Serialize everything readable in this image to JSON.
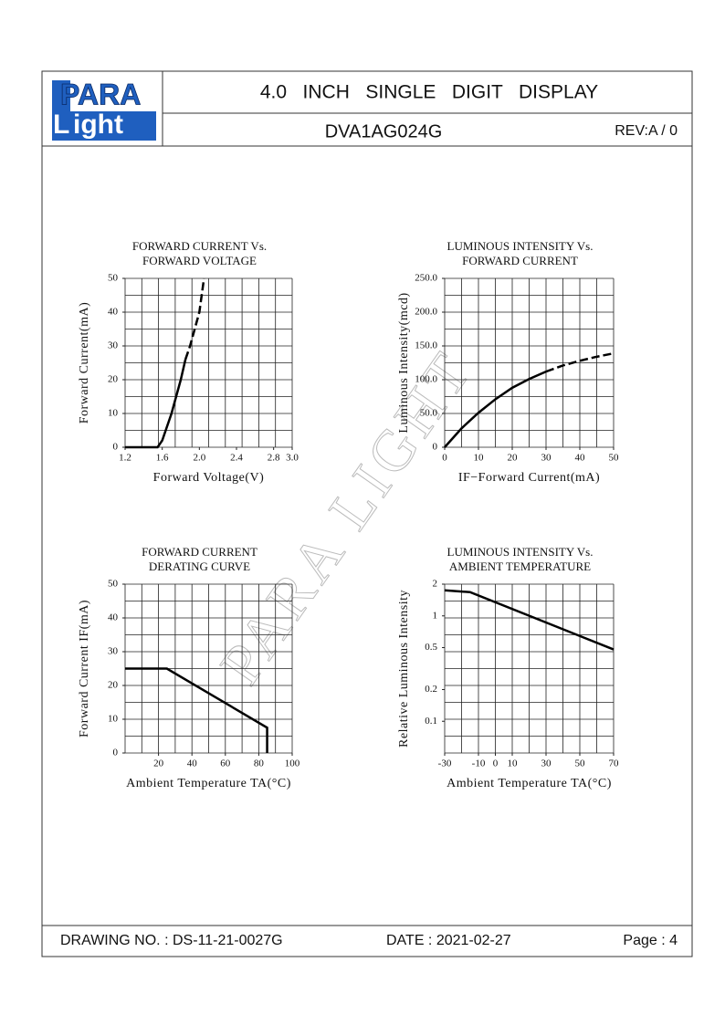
{
  "header": {
    "logo": {
      "top": "PARA",
      "initial": "L",
      "bottom": "ight"
    },
    "title": "4.0   INCH   SINGLE   DIGIT   DISPLAY",
    "part_number": "DVA1AG024G",
    "revision": "REV:A / 0"
  },
  "watermark": "PARA LIGHT",
  "chart_data": [
    {
      "type": "line",
      "title": [
        "FORWARD CURRENT Vs.",
        "FORWARD VOLTAGE"
      ],
      "x_label": "Forward Voltage(V)",
      "y_label": "Forward Current(mA)",
      "xlim": [
        1.2,
        3.0
      ],
      "xticks": [
        1.2,
        1.6,
        {
          "value": 2.0,
          "label": "2.0"
        },
        2.4,
        2.8,
        {
          "value": 3.0,
          "label": "3.0"
        }
      ],
      "ylim": [
        0,
        50
      ],
      "yticks": [
        0,
        10,
        20,
        30,
        40,
        50
      ],
      "grid": true,
      "series": [
        {
          "color": "#000000",
          "dashed": false,
          "x": [
            1.2,
            1.55,
            1.6,
            1.7,
            1.8,
            1.85
          ],
          "values": [
            0,
            0,
            2,
            10,
            20,
            26
          ]
        },
        {
          "color": "#000000",
          "dashed": true,
          "x": [
            1.85,
            1.9,
            2.0,
            2.05
          ],
          "values": [
            26,
            30,
            40,
            50
          ]
        }
      ]
    },
    {
      "type": "line",
      "title": [
        "LUMINOUS INTENSITY Vs.",
        "FORWARD CURRENT"
      ],
      "x_label": "IF−Forward Current(mA)",
      "y_label": "Luminous Intensity(mcd)",
      "xlim": [
        0,
        50
      ],
      "xticks": [
        0,
        10,
        20,
        30,
        40,
        50
      ],
      "ylim": [
        0,
        250
      ],
      "yticks": [
        0,
        {
          "value": 50,
          "label": "50.0"
        },
        {
          "value": 100,
          "label": "100.0"
        },
        {
          "value": 150,
          "label": "150.0"
        },
        {
          "value": 200,
          "label": "200.0"
        },
        {
          "value": 250,
          "label": "250.0"
        }
      ],
      "grid": true,
      "series": [
        {
          "color": "#000000",
          "dashed": false,
          "x": [
            0,
            5,
            10,
            15,
            20,
            25,
            30
          ],
          "values": [
            0,
            28,
            51,
            71,
            88,
            101,
            112
          ]
        },
        {
          "color": "#000000",
          "dashed": true,
          "x": [
            30,
            35,
            40,
            45,
            50
          ],
          "values": [
            112,
            121,
            128,
            134,
            139
          ]
        }
      ]
    },
    {
      "type": "line",
      "title": [
        "FORWARD CURRENT",
        "DERATING CURVE"
      ],
      "x_label": "Ambient Temperature TA(°C)",
      "y_label": "Forward Current IF(mA)",
      "xlim": [
        0,
        100
      ],
      "xticks": [
        20,
        40,
        60,
        80,
        100
      ],
      "ylim": [
        0,
        50
      ],
      "yticks": [
        0,
        10,
        20,
        30,
        40,
        50
      ],
      "grid": true,
      "series": [
        {
          "color": "#000000",
          "dashed": false,
          "x": [
            0,
            25,
            85,
            85
          ],
          "values": [
            25,
            25,
            7.5,
            0
          ]
        }
      ]
    },
    {
      "type": "line",
      "title": [
        "LUMINOUS INTENSITY Vs.",
        "AMBIENT TEMPERATURE"
      ],
      "x_label": "Ambient Temperature TA(°C)",
      "y_label": "Relative Luminous Intensity",
      "xlim": [
        -30,
        70
      ],
      "xticks": [
        -30,
        -10,
        0,
        10,
        30,
        50,
        70
      ],
      "ylim": [
        0.05,
        2
      ],
      "log_y": true,
      "yticks": [
        0.1,
        0.2,
        0.5,
        1,
        2
      ],
      "grid": true,
      "series": [
        {
          "color": "#000000",
          "dashed": false,
          "x": [
            -30,
            -15,
            70
          ],
          "values": [
            1.75,
            1.68,
            0.48
          ]
        }
      ]
    }
  ],
  "footer": {
    "drawing_no": "DRAWING NO. : DS-11-21-0027G",
    "date": "DATE : 2021-02-27",
    "page": "Page : 4"
  }
}
